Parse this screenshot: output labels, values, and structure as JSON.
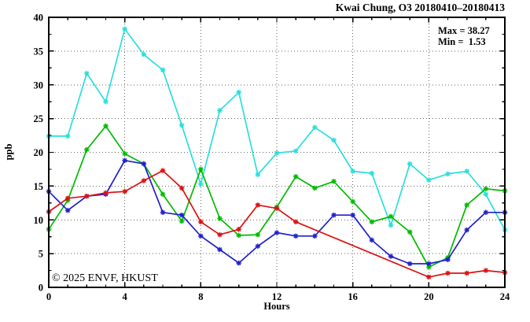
{
  "title": "Kwai Chung, O3 20180410–20180413",
  "annotation": {
    "max_label": "Max = 38.27",
    "min_label": "Min =  1.53"
  },
  "watermark": "© 2025 ENVF, HKUST",
  "colors": {
    "cyan_series": "#2adydd",
    "frame": "#000000",
    "grid": "#666666",
    "watermark_gray": "#d4d4d4"
  },
  "chart_data": {
    "type": "line",
    "title": "Kwai Chung, O3 20180410–20180413",
    "xlabel": "Hours",
    "ylabel": "ppb",
    "xlim": [
      0,
      24
    ],
    "ylim": [
      0,
      40
    ],
    "x_major_ticks": [
      0,
      4,
      8,
      12,
      16,
      20,
      24
    ],
    "y_major_ticks": [
      0,
      5,
      10,
      15,
      20,
      25,
      30,
      35,
      40
    ],
    "x_minor_step": 1,
    "y_minor_step": 2.5,
    "grid": "dotted lines at interior major ticks, no legend",
    "legend_position": "none",
    "stats": {
      "max": 38.27,
      "min": 1.53
    },
    "marker": "asterisk",
    "x": [
      0,
      1,
      2,
      3,
      4,
      5,
      6,
      7,
      8,
      9,
      10,
      11,
      12,
      13,
      14,
      15,
      16,
      17,
      18,
      19,
      20,
      21,
      22,
      23,
      24
    ],
    "series": [
      {
        "name": "cyan-line",
        "color": "#2bdede",
        "values": [
          22.4,
          22.4,
          31.7,
          27.5,
          38.27,
          34.5,
          32.2,
          24.0,
          15.3,
          26.2,
          28.9,
          16.7,
          19.9,
          20.2,
          23.7,
          21.8,
          17.2,
          16.9,
          9.2,
          18.3,
          15.9,
          16.8,
          17.2,
          13.8,
          8.5
        ]
      },
      {
        "name": "green-line",
        "color": "#00bb00",
        "values": [
          8.6,
          12.9,
          20.4,
          23.9,
          19.8,
          18.3,
          13.8,
          9.8,
          17.5,
          10.2,
          7.7,
          7.8,
          11.9,
          16.4,
          14.7,
          15.7,
          12.7,
          9.7,
          10.5,
          8.2,
          3.0,
          4.4,
          12.2,
          14.6,
          14.3
        ]
      },
      {
        "name": "blue-line",
        "color": "#2020cc",
        "values": [
          14.2,
          11.4,
          13.5,
          13.8,
          18.8,
          18.3,
          11.1,
          10.7,
          7.6,
          5.6,
          3.6,
          6.1,
          8.1,
          7.6,
          7.6,
          10.7,
          10.7,
          7.0,
          4.6,
          3.5,
          3.5,
          4.1,
          8.5,
          11.1,
          11.1
        ]
      },
      {
        "name": "red-line",
        "color": "#dd1111",
        "values": [
          11.2,
          13.2,
          13.5,
          14.0,
          14.2,
          15.8,
          17.3,
          14.7,
          9.7,
          7.8,
          8.6,
          12.2,
          11.7,
          9.7,
          null,
          null,
          null,
          null,
          null,
          null,
          1.53,
          2.1,
          2.1,
          2.5,
          2.2
        ]
      }
    ]
  }
}
